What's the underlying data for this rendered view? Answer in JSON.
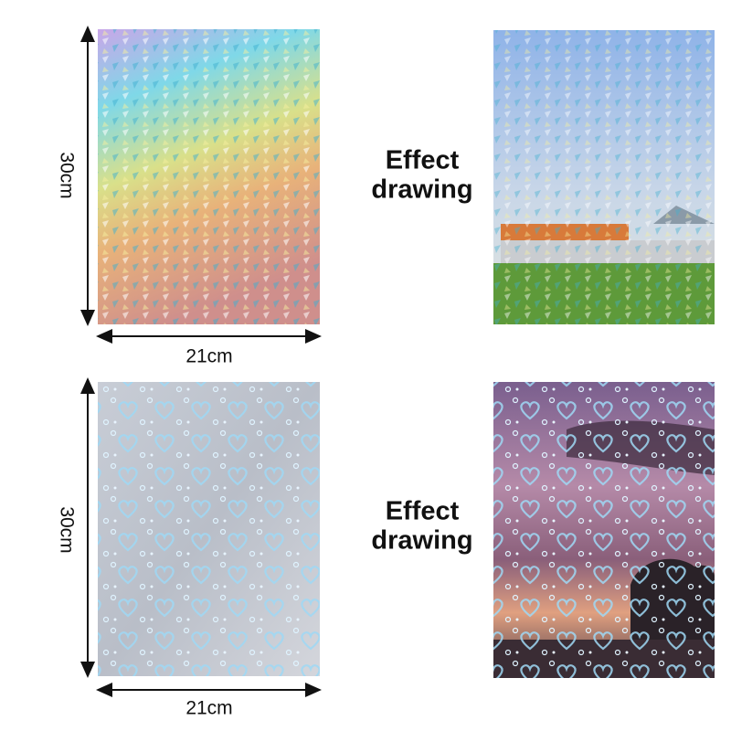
{
  "panels": [
    {
      "height_label": "30cm",
      "width_label": "21cm",
      "caption": [
        "Effect",
        "drawing"
      ]
    },
    {
      "height_label": "30cm",
      "width_label": "21cm",
      "caption": [
        "Effect",
        "drawing"
      ]
    }
  ]
}
